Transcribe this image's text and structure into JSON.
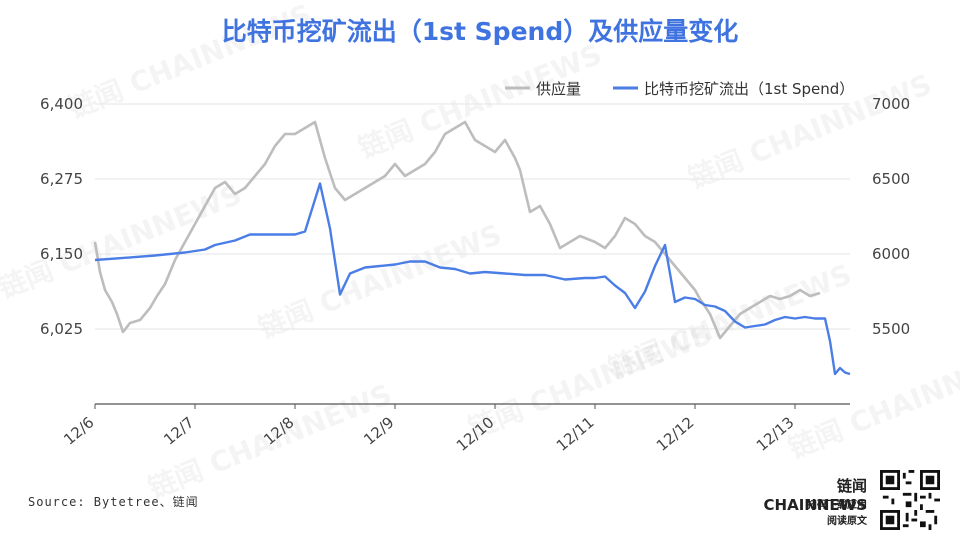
{
  "title": "比特币挖矿流出（1st Spend）及供应量变化",
  "source": "Source: Bytetree、链闻",
  "brand": {
    "name": "链闻 CHAINNEWS",
    "line1": "扫码下载应用",
    "line2": "阅读原文",
    "watermark": "链闻 CHAINNEWS"
  },
  "colors": {
    "supply": "#bdbdbd",
    "outflow": "#4a7ee6",
    "title": "#3f73e0",
    "grid": "#e6e6e6"
  },
  "chart_data": {
    "type": "line",
    "x_ticks": [
      "12/6",
      "12/7",
      "12/8",
      "12/9",
      "12/10",
      "12/11",
      "12/12",
      "12/13"
    ],
    "x_tick_pos": [
      0,
      1,
      2,
      3,
      4,
      5,
      6,
      7
    ],
    "y_left": {
      "ticks": [
        6025,
        6150,
        6275,
        6400
      ],
      "range": [
        5900,
        6400
      ]
    },
    "y_right": {
      "ticks": [
        5500,
        6000,
        6500,
        7000
      ],
      "range": [
        5000,
        7000
      ]
    },
    "legend_position": "top-right",
    "grid": true,
    "series": [
      {
        "name": "供应量",
        "axis": "left",
        "points": [
          [
            0,
            6170
          ],
          [
            0.05,
            6120
          ],
          [
            0.1,
            6090
          ],
          [
            0.17,
            6070
          ],
          [
            0.22,
            6050
          ],
          [
            0.28,
            6020
          ],
          [
            0.35,
            6035
          ],
          [
            0.45,
            6040
          ],
          [
            0.55,
            6060
          ],
          [
            0.62,
            6080
          ],
          [
            0.7,
            6100
          ],
          [
            0.8,
            6140
          ],
          [
            0.9,
            6170
          ],
          [
            1.0,
            6200
          ],
          [
            1.1,
            6230
          ],
          [
            1.2,
            6260
          ],
          [
            1.3,
            6270
          ],
          [
            1.4,
            6250
          ],
          [
            1.5,
            6260
          ],
          [
            1.6,
            6280
          ],
          [
            1.7,
            6300
          ],
          [
            1.8,
            6330
          ],
          [
            1.9,
            6350
          ],
          [
            2.0,
            6350
          ],
          [
            2.1,
            6360
          ],
          [
            2.2,
            6370
          ],
          [
            2.3,
            6310
          ],
          [
            2.4,
            6260
          ],
          [
            2.5,
            6240
          ],
          [
            2.6,
            6250
          ],
          [
            2.7,
            6260
          ],
          [
            2.8,
            6270
          ],
          [
            2.9,
            6280
          ],
          [
            3.0,
            6300
          ],
          [
            3.1,
            6280
          ],
          [
            3.2,
            6290
          ],
          [
            3.3,
            6300
          ],
          [
            3.4,
            6320
          ],
          [
            3.5,
            6350
          ],
          [
            3.6,
            6360
          ],
          [
            3.7,
            6370
          ],
          [
            3.8,
            6340
          ],
          [
            3.9,
            6330
          ],
          [
            4.0,
            6320
          ],
          [
            4.1,
            6340
          ],
          [
            4.2,
            6310
          ],
          [
            4.25,
            6290
          ],
          [
            4.35,
            6220
          ],
          [
            4.45,
            6230
          ],
          [
            4.55,
            6200
          ],
          [
            4.65,
            6160
          ],
          [
            4.75,
            6170
          ],
          [
            4.85,
            6180
          ],
          [
            5.0,
            6170
          ],
          [
            5.1,
            6160
          ],
          [
            5.2,
            6180
          ],
          [
            5.3,
            6210
          ],
          [
            5.4,
            6200
          ],
          [
            5.5,
            6180
          ],
          [
            5.6,
            6170
          ],
          [
            5.7,
            6150
          ],
          [
            5.8,
            6130
          ],
          [
            5.9,
            6110
          ],
          [
            6.0,
            6090
          ],
          [
            6.05,
            6075
          ],
          [
            6.15,
            6050
          ],
          [
            6.25,
            6010
          ],
          [
            6.35,
            6030
          ],
          [
            6.45,
            6050
          ],
          [
            6.55,
            6060
          ],
          [
            6.65,
            6070
          ],
          [
            6.75,
            6080
          ],
          [
            6.85,
            6075
          ],
          [
            6.95,
            6080
          ],
          [
            7.05,
            6090
          ],
          [
            7.15,
            6080
          ],
          [
            7.25,
            6085
          ]
        ]
      },
      {
        "name": "比特币挖矿流出（1st Spend）",
        "axis": "right",
        "points": [
          [
            0,
            5960
          ],
          [
            0.3,
            5975
          ],
          [
            0.6,
            5990
          ],
          [
            0.9,
            6010
          ],
          [
            1.1,
            6030
          ],
          [
            1.2,
            6060
          ],
          [
            1.4,
            6090
          ],
          [
            1.55,
            6130
          ],
          [
            1.7,
            6130
          ],
          [
            2.0,
            6130
          ],
          [
            2.1,
            6150
          ],
          [
            2.25,
            6470
          ],
          [
            2.35,
            6170
          ],
          [
            2.45,
            5730
          ],
          [
            2.55,
            5870
          ],
          [
            2.7,
            5910
          ],
          [
            2.85,
            5920
          ],
          [
            3.0,
            5930
          ],
          [
            3.15,
            5950
          ],
          [
            3.3,
            5950
          ],
          [
            3.45,
            5910
          ],
          [
            3.6,
            5900
          ],
          [
            3.75,
            5870
          ],
          [
            3.9,
            5880
          ],
          [
            4.1,
            5870
          ],
          [
            4.3,
            5860
          ],
          [
            4.5,
            5860
          ],
          [
            4.7,
            5830
          ],
          [
            4.9,
            5840
          ],
          [
            5.0,
            5840
          ],
          [
            5.1,
            5850
          ],
          [
            5.2,
            5790
          ],
          [
            5.3,
            5740
          ],
          [
            5.4,
            5640
          ],
          [
            5.5,
            5750
          ],
          [
            5.6,
            5920
          ],
          [
            5.7,
            6060
          ],
          [
            5.8,
            5680
          ],
          [
            5.9,
            5710
          ],
          [
            6.0,
            5700
          ],
          [
            6.1,
            5660
          ],
          [
            6.2,
            5650
          ],
          [
            6.3,
            5620
          ],
          [
            6.4,
            5550
          ],
          [
            6.5,
            5510
          ],
          [
            6.6,
            5520
          ],
          [
            6.7,
            5530
          ],
          [
            6.8,
            5560
          ],
          [
            6.9,
            5580
          ],
          [
            7.0,
            5570
          ],
          [
            7.1,
            5580
          ],
          [
            7.2,
            5570
          ],
          [
            7.3,
            5570
          ],
          [
            7.35,
            5420
          ],
          [
            7.4,
            5200
          ],
          [
            7.45,
            5240
          ],
          [
            7.5,
            5210
          ],
          [
            7.55,
            5200
          ]
        ]
      }
    ]
  }
}
